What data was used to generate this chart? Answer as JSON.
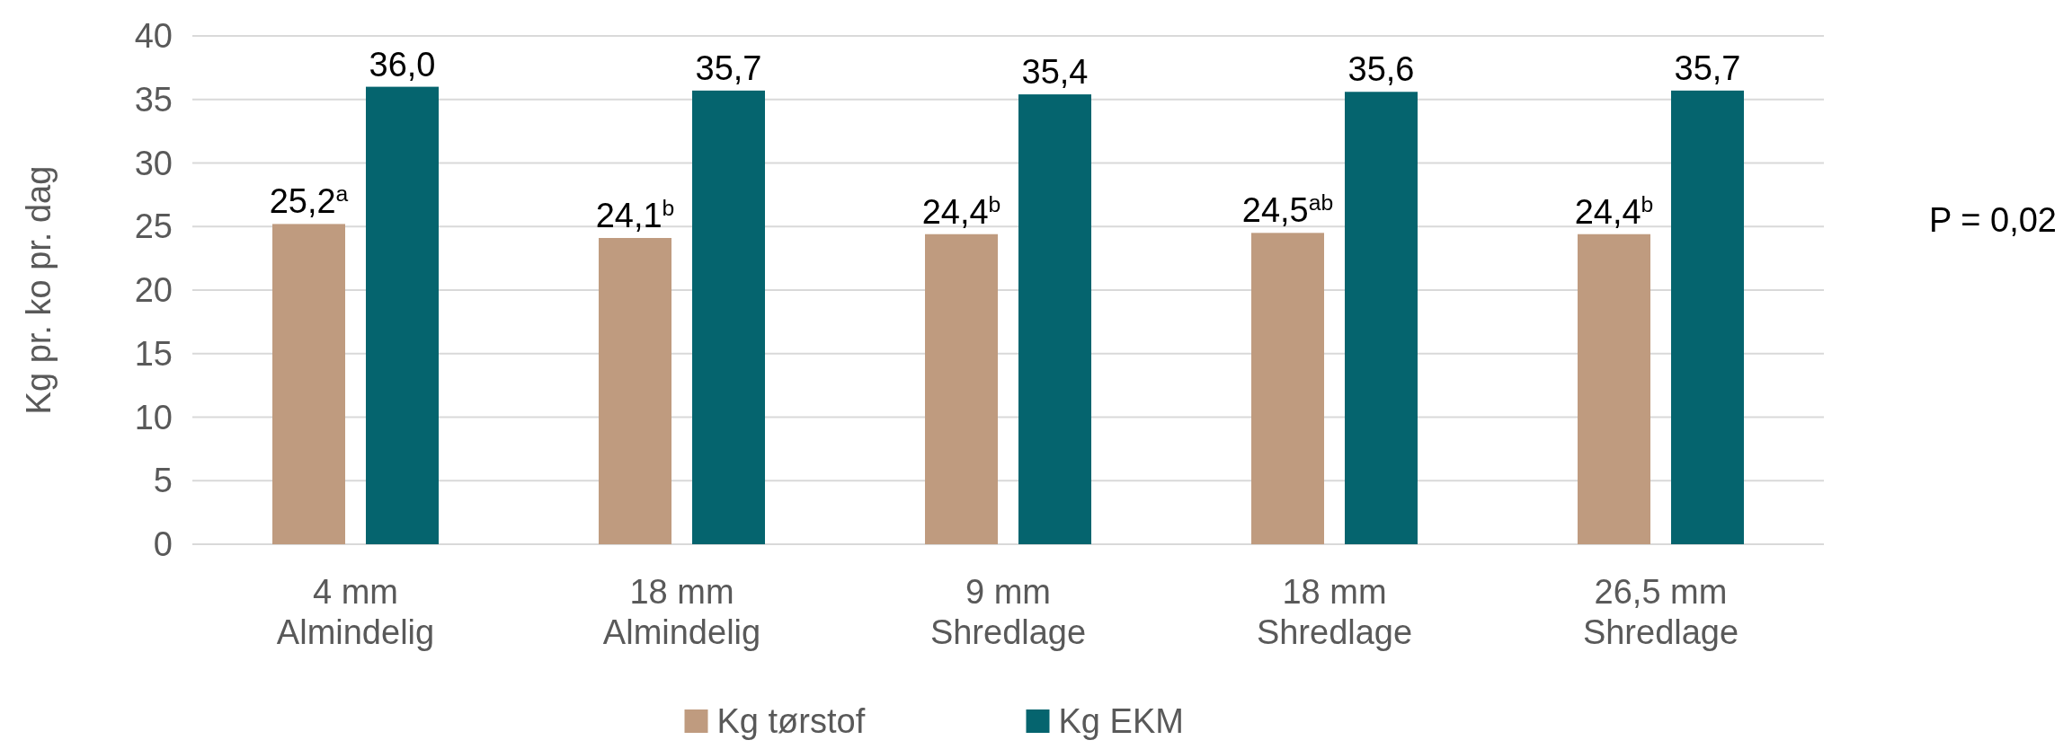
{
  "chart_data": {
    "type": "bar",
    "ylabel": "Kg pr. ko pr. dag",
    "categories": [
      "4 mm\nAlmindelig",
      "18 mm\nAlmindelig",
      "9 mm\nShredlage",
      "18 mm\nShredlage",
      "26,5 mm\nShredlage"
    ],
    "series": [
      {
        "name": "Kg tørstof",
        "color": "#bf9b7f",
        "values": [
          25.2,
          24.1,
          24.4,
          24.5,
          24.4
        ],
        "value_labels": [
          "25,2$^{a}$",
          "24,1$^{b}$",
          "24,4$^{b}$",
          "24,5$^{ab}$",
          "24,4$^{b}$"
        ]
      },
      {
        "name": "Kg EKM",
        "color": "#05646e",
        "values": [
          36.0,
          35.7,
          35.4,
          35.6,
          35.7
        ],
        "value_labels": [
          "36,0",
          "35,7",
          "35,4",
          "35,6",
          "35,7"
        ]
      }
    ],
    "ylim": [
      0,
      40
    ],
    "yticks": [
      0,
      5,
      10,
      15,
      20,
      25,
      30,
      35,
      40
    ],
    "grid": "y",
    "legend": "bottom",
    "annotations": [
      "P = 0,02"
    ]
  }
}
